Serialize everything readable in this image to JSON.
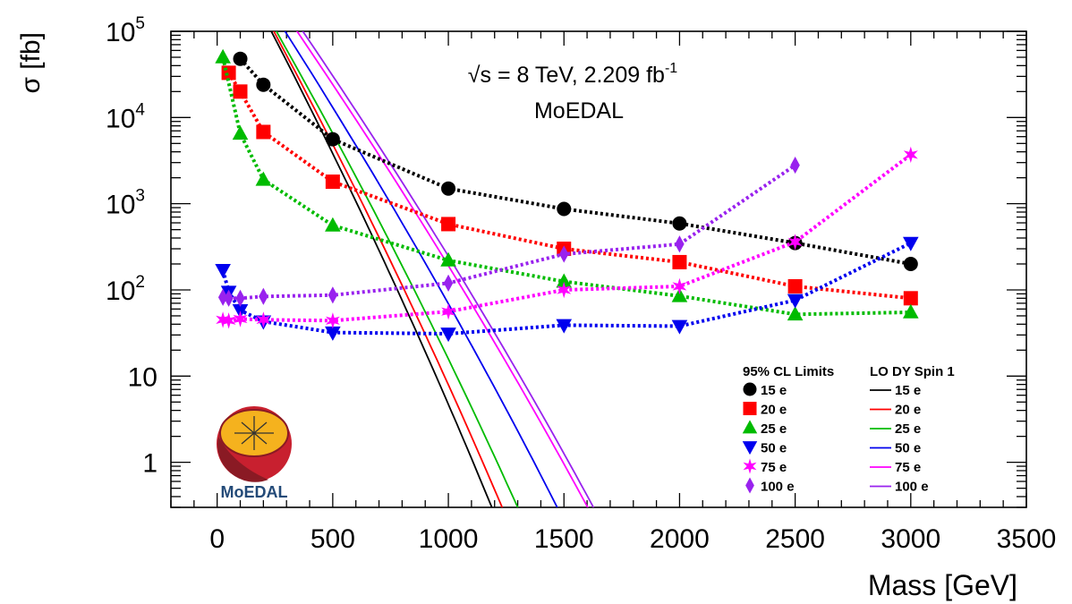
{
  "chart_data": {
    "type": "scatter",
    "title_line1": "√s = 8 TeV, 2.209 fb",
    "title_sup": "-1",
    "subtitle": "MoEDAL",
    "xlabel": "Mass [GeV]",
    "ylabel": "σ [fb]",
    "xlim": [
      -200,
      3500
    ],
    "ylim": [
      0.3,
      100000
    ],
    "yscale": "log",
    "x_ticks": [
      0,
      500,
      1000,
      1500,
      2000,
      2500,
      3000,
      3500
    ],
    "x_tick_labels": [
      "0",
      "500",
      "1000",
      "1500",
      "2000",
      "2500",
      "3000",
      "3500"
    ],
    "y_ticks": [
      {
        "value": 1,
        "label": "1",
        "sup": ""
      },
      {
        "value": 10,
        "label": "10",
        "sup": ""
      },
      {
        "value": 100,
        "label": "10",
        "sup": "2"
      },
      {
        "value": 1000,
        "label": "10",
        "sup": "3"
      },
      {
        "value": 10000,
        "label": "10",
        "sup": "4"
      },
      {
        "value": 100000,
        "label": "10",
        "sup": "5"
      }
    ],
    "legend_left_title": "95% CL Limits",
    "legend_right_title": "LO DY Spin 1",
    "legend_position": "bottom-right",
    "series": [
      {
        "name": "15 e",
        "color": "#000000",
        "marker": "circle",
        "x": [
          100,
          200,
          500,
          1000,
          1500,
          2000,
          2500,
          3000
        ],
        "values": [
          48000,
          24000,
          5600,
          1500,
          870,
          590,
          350,
          200
        ],
        "theory": {
          "x0": 215,
          "slope": -0.0058
        }
      },
      {
        "name": "20 e",
        "color": "#ff0000",
        "marker": "square",
        "x": [
          50,
          100,
          200,
          500,
          1000,
          1500,
          2000,
          2500,
          3000
        ],
        "values": [
          33000,
          20000,
          6800,
          1800,
          580,
          300,
          210,
          110,
          80
        ],
        "theory": {
          "x0": 225,
          "slope": -0.0056
        }
      },
      {
        "name": "25 e",
        "color": "#00bb00",
        "marker": "triangle-up",
        "x": [
          25,
          100,
          200,
          500,
          1000,
          1500,
          2000,
          2500,
          3000
        ],
        "values": [
          50000,
          6500,
          1900,
          560,
          220,
          125,
          85,
          52,
          55
        ],
        "theory": {
          "x0": 235,
          "slope": -0.0053
        }
      },
      {
        "name": "50 e",
        "color": "#0000ee",
        "marker": "triangle-down",
        "x": [
          25,
          50,
          100,
          200,
          500,
          1000,
          1500,
          2000,
          2500,
          3000
        ],
        "values": [
          170,
          95,
          58,
          43,
          32,
          31,
          39,
          38,
          76,
          350
        ],
        "theory": {
          "x0": 270,
          "slope": -0.0047
        }
      },
      {
        "name": "75 e",
        "color": "#ff00ff",
        "marker": "star",
        "x": [
          25,
          50,
          100,
          200,
          500,
          1000,
          1500,
          2000,
          2500,
          3000
        ],
        "values": [
          45,
          44,
          46,
          45,
          44,
          56,
          100,
          110,
          360,
          3700
        ],
        "theory": {
          "x0": 320,
          "slope": -0.0044
        }
      },
      {
        "name": "100 e",
        "color": "#9922ee",
        "marker": "diamond",
        "x": [
          25,
          50,
          100,
          200,
          500,
          1000,
          1500,
          2000,
          2500
        ],
        "values": [
          82,
          80,
          80,
          84,
          87,
          120,
          260,
          340,
          2800
        ],
        "theory": {
          "x0": 345,
          "slope": -0.0044
        }
      }
    ],
    "logo_text": "MoEDAL",
    "logo_colors": {
      "orange": "#f5b21e",
      "red": "#c8202f",
      "dark_red": "#8a1a24",
      "blue": "#234a78"
    }
  }
}
